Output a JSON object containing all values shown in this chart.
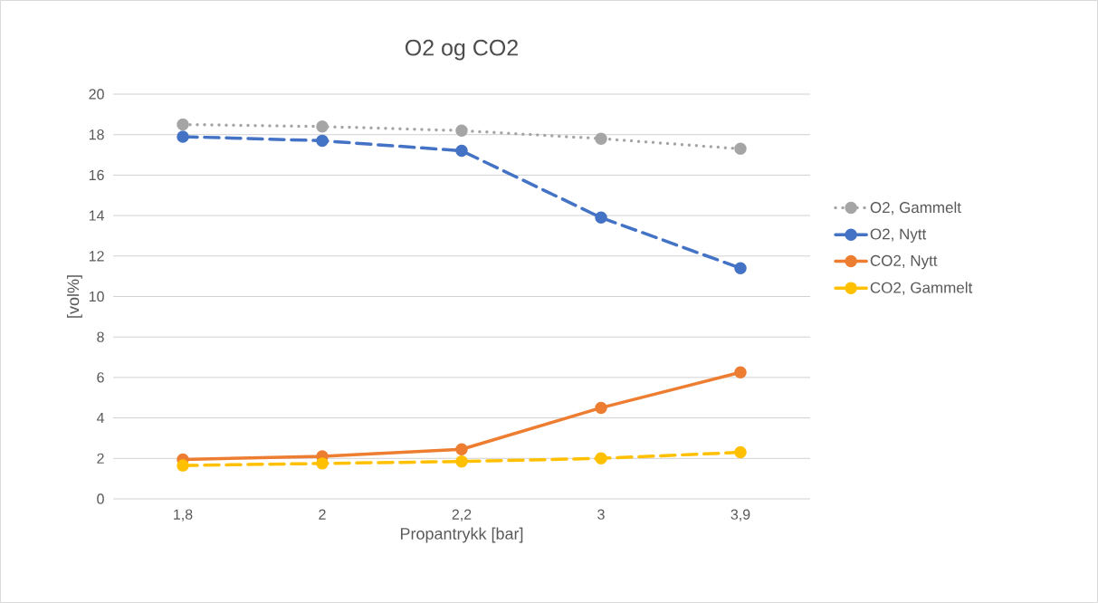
{
  "chart_data": {
    "type": "line",
    "title": "O2 og CO2",
    "xlabel": "Propantrykk [bar]",
    "ylabel": "[vol%]",
    "categories": [
      "1,8",
      "2",
      "2,2",
      "3",
      "3,9"
    ],
    "series": [
      {
        "name": "O2, Gammelt",
        "color": "#a5a5a5",
        "line_style": "dotted",
        "values": [
          18.5,
          18.4,
          18.2,
          17.8,
          17.3
        ]
      },
      {
        "name": "O2, Nytt",
        "color": "#4472c4",
        "line_style": "dashed",
        "values": [
          17.9,
          17.7,
          17.2,
          13.9,
          11.4
        ]
      },
      {
        "name": "CO2, Nytt",
        "color": "#ed7d31",
        "line_style": "solid",
        "values": [
          1.95,
          2.1,
          2.45,
          4.5,
          6.25
        ]
      },
      {
        "name": "CO2, Gammelt",
        "color": "#ffc000",
        "line_style": "dashed",
        "values": [
          1.65,
          1.75,
          1.85,
          2.0,
          2.3
        ]
      }
    ],
    "ylim": [
      0,
      20
    ],
    "yticks": [
      0,
      2,
      4,
      6,
      8,
      10,
      12,
      14,
      16,
      18,
      20
    ],
    "grid": "y",
    "legend": "right",
    "marker": "circle"
  }
}
